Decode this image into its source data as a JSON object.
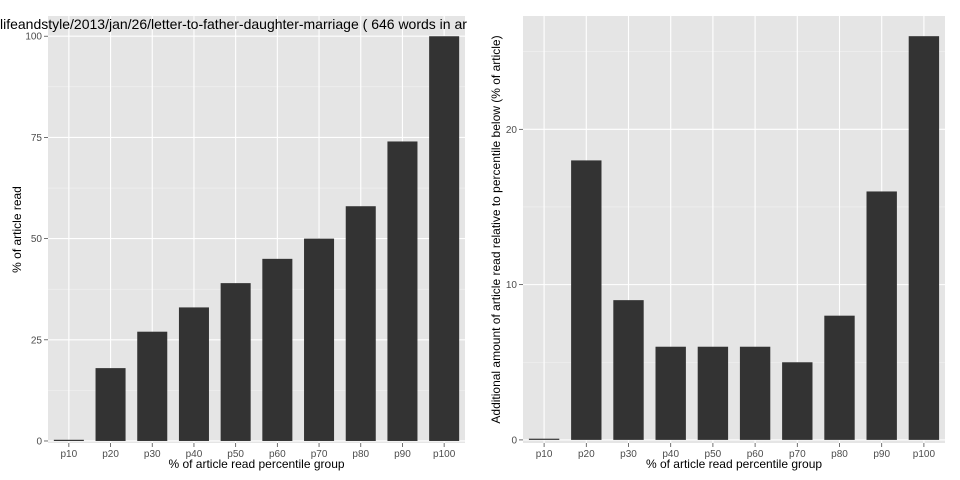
{
  "colors": {
    "panel": "#e5e5e5",
    "grid": "#ffffff",
    "bar": "#333333",
    "tick_text": "#4d4d4d"
  },
  "chart_data": [
    {
      "type": "bar",
      "title": "lifeandstyle/2013/jan/26/letter-to-father-daughter-marriage ( 646 words in ar",
      "xlabel": "% of article read percentile group",
      "ylabel": "% of article read",
      "categories": [
        "p10",
        "p20",
        "p30",
        "p40",
        "p50",
        "p60",
        "p70",
        "p80",
        "p90",
        "p100"
      ],
      "values": [
        0,
        18,
        27,
        33,
        39,
        45,
        50,
        58,
        74,
        100
      ],
      "yticks": [
        0,
        25,
        50,
        75,
        100
      ],
      "ylim": [
        -0.5,
        105
      ],
      "grid": true
    },
    {
      "type": "bar",
      "title": "",
      "xlabel": "% of article read percentile group",
      "ylabel": "Additional amount of article read relative to percentile below (% of article)",
      "categories": [
        "p10",
        "p20",
        "p30",
        "p40",
        "p50",
        "p60",
        "p70",
        "p80",
        "p90",
        "p100"
      ],
      "values": [
        0,
        18,
        9,
        6,
        6,
        6,
        5,
        8,
        16,
        26
      ],
      "yticks": [
        0,
        10,
        20
      ],
      "ylim": [
        -0.2,
        27.3
      ],
      "grid": true
    }
  ]
}
